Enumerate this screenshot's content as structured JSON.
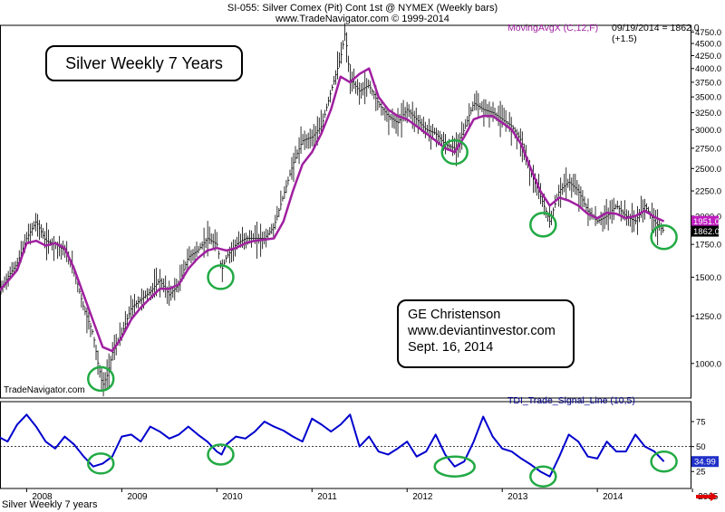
{
  "header": {
    "line1": "SI-055:  Silver Comex (Pit) Cont 1st @ NYMEX  (Weekly bars)",
    "line2": "www.TradeNavigator.com © 1999-2014"
  },
  "annotations": {
    "title_box": "Silver Weekly 7 Years",
    "credit_lines": [
      "GE Christenson",
      "www.deviantinvestor.com",
      "Sept. 16, 2014"
    ],
    "watermark": "TradeNavigator.com",
    "footer_title": "Silver Weekly 7 years"
  },
  "indicators": {
    "ma_label": "MovingAvgX (C,12,F)",
    "ma_value_text": "09/19/2014 = 1862.0 (+1.5)",
    "tdi_label": "TDI_Trade_Signal_Line (10,5)"
  },
  "colors": {
    "ma_line": "#a020a0",
    "tdi_line": "#0000cd",
    "circles": "#22aa44",
    "price_bars": "#000000",
    "ma_tag_bg": "#c01fc0",
    "tdi_tag_bg": "#2030c8",
    "arrow": "#e00000"
  },
  "chart_data": [
    {
      "type": "line",
      "scale": "log",
      "title": "",
      "ylim": [
        850,
        4900
      ],
      "y_ticks": [
        1000,
        1250,
        1500,
        1750,
        2000,
        2250,
        2500,
        2750,
        3000,
        3250,
        3500,
        3750,
        4000,
        4250,
        4500,
        4750
      ],
      "y_tick_labels": [
        "1000.0",
        "1250.0",
        "1500.0",
        "1750.0",
        "2000.0",
        "2250.0",
        "2500.0",
        "2750.0",
        "3000.0",
        "3250.0",
        "3500.0",
        "3750.0",
        "4000.0",
        "4250.0",
        "4500.0",
        "4750.0"
      ],
      "tags": [
        {
          "value": 1951,
          "label": "1951.0",
          "series": "ma"
        },
        {
          "value": 1862,
          "label": "1862.0",
          "series": "price"
        }
      ],
      "series": [
        {
          "id": "price",
          "style": "weekly-bars",
          "x": [
            2007.7,
            2007.8,
            2007.9,
            2008.0,
            2008.1,
            2008.2,
            2008.3,
            2008.4,
            2008.5,
            2008.6,
            2008.7,
            2008.75,
            2008.8,
            2008.85,
            2008.9,
            2009.0,
            2009.1,
            2009.2,
            2009.3,
            2009.4,
            2009.5,
            2009.6,
            2009.7,
            2009.8,
            2009.9,
            2010.0,
            2010.05,
            2010.1,
            2010.2,
            2010.3,
            2010.4,
            2010.5,
            2010.6,
            2010.7,
            2010.8,
            2010.9,
            2011.0,
            2011.1,
            2011.2,
            2011.3,
            2011.35,
            2011.4,
            2011.5,
            2011.6,
            2011.7,
            2011.8,
            2011.9,
            2012.0,
            2012.1,
            2012.2,
            2012.3,
            2012.4,
            2012.5,
            2012.6,
            2012.7,
            2012.8,
            2012.9,
            2013.0,
            2013.1,
            2013.2,
            2013.3,
            2013.4,
            2013.5,
            2013.6,
            2013.7,
            2013.8,
            2013.9,
            2014.0,
            2014.1,
            2014.2,
            2014.3,
            2014.4,
            2014.5,
            2014.6,
            2014.7
          ],
          "values": [
            1380,
            1500,
            1600,
            1800,
            1950,
            1780,
            1750,
            1700,
            1550,
            1300,
            1150,
            1000,
            900,
            950,
            1050,
            1150,
            1300,
            1350,
            1400,
            1480,
            1380,
            1450,
            1650,
            1700,
            1800,
            1750,
            1550,
            1650,
            1750,
            1800,
            1800,
            1800,
            1900,
            2200,
            2550,
            2850,
            2900,
            3050,
            3600,
            4200,
            4750,
            3800,
            3600,
            3700,
            3400,
            3200,
            3100,
            3300,
            3150,
            3000,
            2950,
            2800,
            2750,
            3000,
            3400,
            3300,
            3250,
            3150,
            3050,
            2850,
            2450,
            2200,
            1950,
            2250,
            2350,
            2250,
            2050,
            1950,
            2000,
            2100,
            2000,
            1950,
            2100,
            1950,
            1862
          ]
        },
        {
          "id": "ma",
          "style": "line",
          "x": [
            2007.7,
            2007.8,
            2007.9,
            2008.0,
            2008.1,
            2008.2,
            2008.3,
            2008.4,
            2008.5,
            2008.6,
            2008.7,
            2008.8,
            2008.9,
            2009.0,
            2009.1,
            2009.2,
            2009.3,
            2009.4,
            2009.5,
            2009.6,
            2009.7,
            2009.8,
            2009.9,
            2010.0,
            2010.1,
            2010.2,
            2010.3,
            2010.4,
            2010.5,
            2010.6,
            2010.7,
            2010.8,
            2010.9,
            2011.0,
            2011.1,
            2011.2,
            2011.3,
            2011.4,
            2011.5,
            2011.6,
            2011.7,
            2011.8,
            2011.9,
            2012.0,
            2012.1,
            2012.2,
            2012.3,
            2012.4,
            2012.5,
            2012.6,
            2012.7,
            2012.8,
            2012.9,
            2013.0,
            2013.1,
            2013.2,
            2013.3,
            2013.4,
            2013.5,
            2013.6,
            2013.7,
            2013.8,
            2013.9,
            2014.0,
            2014.1,
            2014.2,
            2014.3,
            2014.4,
            2014.5,
            2014.6,
            2014.7
          ],
          "values": [
            1400,
            1470,
            1550,
            1760,
            1780,
            1740,
            1760,
            1720,
            1560,
            1380,
            1220,
            1080,
            1060,
            1130,
            1230,
            1300,
            1360,
            1420,
            1420,
            1450,
            1560,
            1640,
            1700,
            1720,
            1700,
            1720,
            1760,
            1780,
            1790,
            1800,
            1950,
            2250,
            2550,
            2700,
            2950,
            3300,
            3850,
            3750,
            3900,
            4000,
            3500,
            3300,
            3200,
            3150,
            3050,
            2950,
            2850,
            2750,
            2700,
            2900,
            3150,
            3200,
            3200,
            3100,
            3000,
            2800,
            2500,
            2250,
            2100,
            2180,
            2150,
            2100,
            2020,
            1980,
            2030,
            2020,
            1980,
            2000,
            2050,
            1990,
            1951
          ]
        }
      ],
      "circles_at": [
        {
          "x": 2008.78,
          "y": 930
        },
        {
          "x": 2010.04,
          "y": 1500
        },
        {
          "x": 2012.5,
          "y": 2700
        },
        {
          "x": 2013.43,
          "y": 1920
        },
        {
          "x": 2014.7,
          "y": 1810
        }
      ]
    },
    {
      "type": "line",
      "title": "",
      "ylim": [
        8,
        95
      ],
      "y_ticks": [
        25,
        50,
        75
      ],
      "y_tick_labels": [
        "25",
        "50",
        "75"
      ],
      "reference_line": 50,
      "tags": [
        {
          "value": 34.99,
          "label": "34.99"
        }
      ],
      "x": [
        2007.7,
        2007.8,
        2007.9,
        2008.0,
        2008.1,
        2008.2,
        2008.3,
        2008.4,
        2008.5,
        2008.6,
        2008.7,
        2008.8,
        2008.9,
        2009.0,
        2009.1,
        2009.2,
        2009.3,
        2009.4,
        2009.5,
        2009.6,
        2009.7,
        2009.8,
        2009.9,
        2010.0,
        2010.05,
        2010.1,
        2010.2,
        2010.3,
        2010.4,
        2010.5,
        2010.6,
        2010.7,
        2010.8,
        2010.9,
        2011.0,
        2011.1,
        2011.2,
        2011.3,
        2011.4,
        2011.5,
        2011.6,
        2011.7,
        2011.8,
        2011.9,
        2012.0,
        2012.1,
        2012.2,
        2012.3,
        2012.4,
        2012.5,
        2012.6,
        2012.7,
        2012.8,
        2012.9,
        2013.0,
        2013.1,
        2013.2,
        2013.3,
        2013.4,
        2013.5,
        2013.6,
        2013.7,
        2013.8,
        2013.9,
        2014.0,
        2014.1,
        2014.2,
        2014.3,
        2014.4,
        2014.5,
        2014.6,
        2014.7
      ],
      "values": [
        60,
        55,
        72,
        82,
        70,
        55,
        48,
        60,
        52,
        40,
        30,
        33,
        40,
        60,
        62,
        55,
        70,
        65,
        58,
        62,
        70,
        62,
        55,
        45,
        42,
        52,
        60,
        58,
        65,
        75,
        70,
        66,
        60,
        55,
        78,
        72,
        65,
        72,
        82,
        50,
        60,
        45,
        42,
        48,
        55,
        40,
        45,
        62,
        42,
        30,
        35,
        55,
        80,
        60,
        48,
        45,
        38,
        32,
        25,
        20,
        40,
        62,
        55,
        40,
        38,
        55,
        45,
        45,
        62,
        50,
        45,
        35
      ]
    }
  ],
  "x_axis": {
    "ticks": [
      2008,
      2009,
      2010,
      2011,
      2012,
      2013,
      2014,
      2015
    ],
    "tick_labels": [
      "2008",
      "2009",
      "2010",
      "2011",
      "2012",
      "2013",
      "2014",
      "2015"
    ],
    "xlim": [
      2007.72,
      2014.98
    ]
  }
}
